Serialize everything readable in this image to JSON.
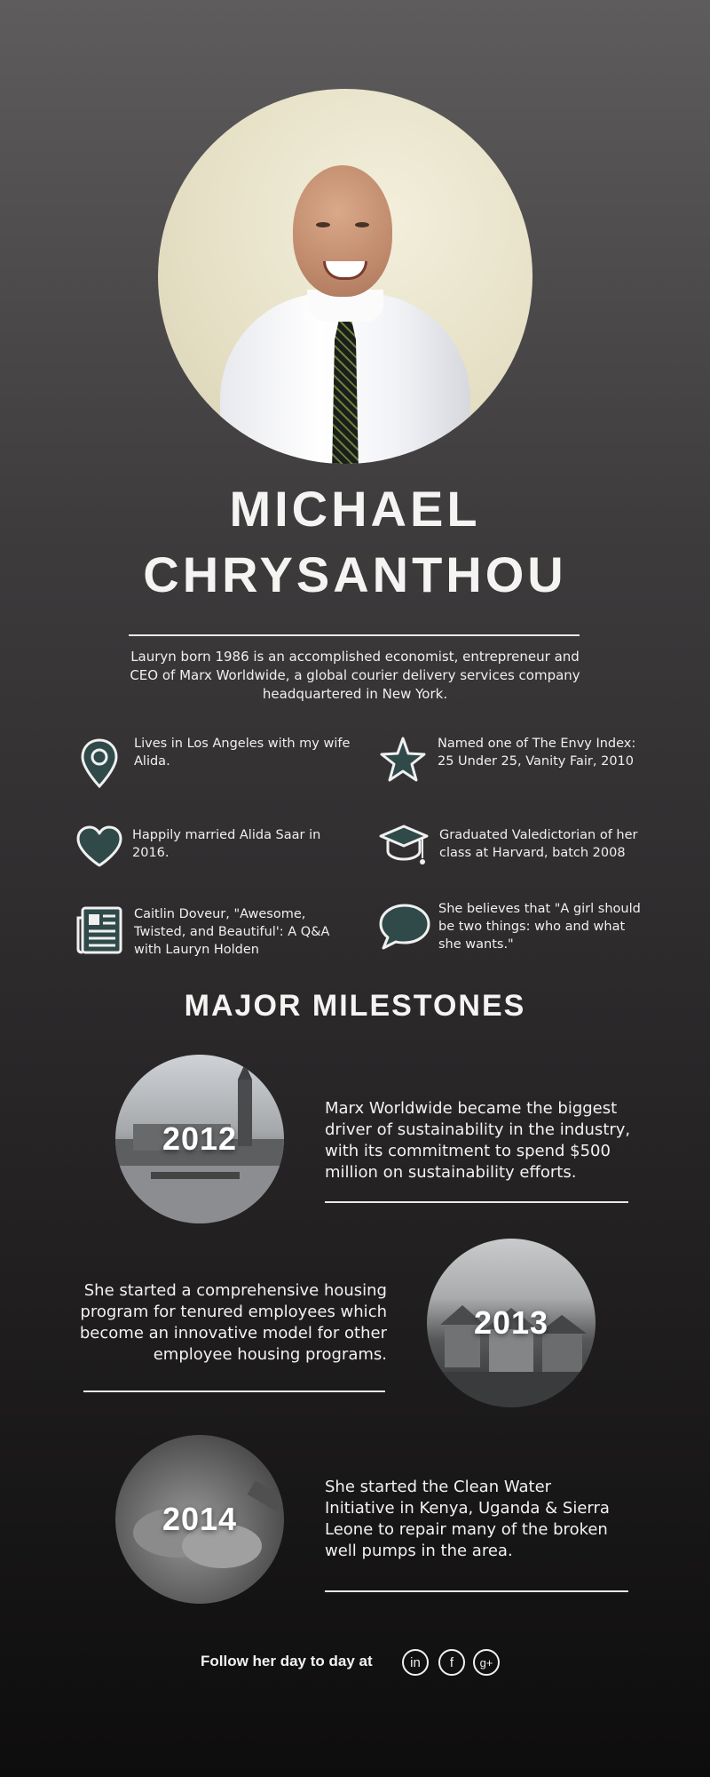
{
  "profile": {
    "name_line1": "MICHAEL",
    "name_line2": "CHRYSANTHOU",
    "intro": "Lauryn born 1986 is an accomplished economist, entrepreneur and CEO of Marx Worldwide, a global courier delivery services company headquartered in New York."
  },
  "facts": [
    {
      "icon": "map-pin-icon",
      "text": "Lives in Los Angeles with my wife Alida."
    },
    {
      "icon": "star-icon",
      "text": "Named one of The Envy Index: 25 Under 25, Vanity Fair, 2010"
    },
    {
      "icon": "heart-icon",
      "text": "Happily married Alida Saar in 2016."
    },
    {
      "icon": "graduation-cap-icon",
      "text": "Graduated Valedictorian of her class at Harvard, batch 2008"
    },
    {
      "icon": "newspaper-icon",
      "text": "Caitlin Doveur, \"Awesome, Twisted, and Beautiful': A Q&A with Lauryn Holden"
    },
    {
      "icon": "speech-bubble-icon",
      "text": "She believes that \"A girl should be two things: who and what she wants.\""
    }
  ],
  "milestones_title": "MAJOR MILESTONES",
  "milestones": [
    {
      "year": "2012",
      "text": "Marx Worldwide became the biggest driver of sustainability in the industry, with its commitment to spend $500 million on sustainability efforts."
    },
    {
      "year": "2013",
      "text": "She started a comprehensive housing program for tenured employees which become an innovative model for other employee housing programs."
    },
    {
      "year": "2014",
      "text": "She started the Clean Water Initiative in Kenya, Uganda & Sierra Leone to repair many of the broken well pumps in the area."
    }
  ],
  "footer": {
    "follow_text": "Follow her day to day at",
    "social": [
      {
        "icon": "linkedin-icon",
        "glyph": "in"
      },
      {
        "icon": "facebook-icon",
        "glyph": "f"
      },
      {
        "icon": "google-plus-icon",
        "glyph": "g+"
      }
    ]
  },
  "colors": {
    "icon_fill": "#2f4a49",
    "text": "#f4f4f2"
  }
}
